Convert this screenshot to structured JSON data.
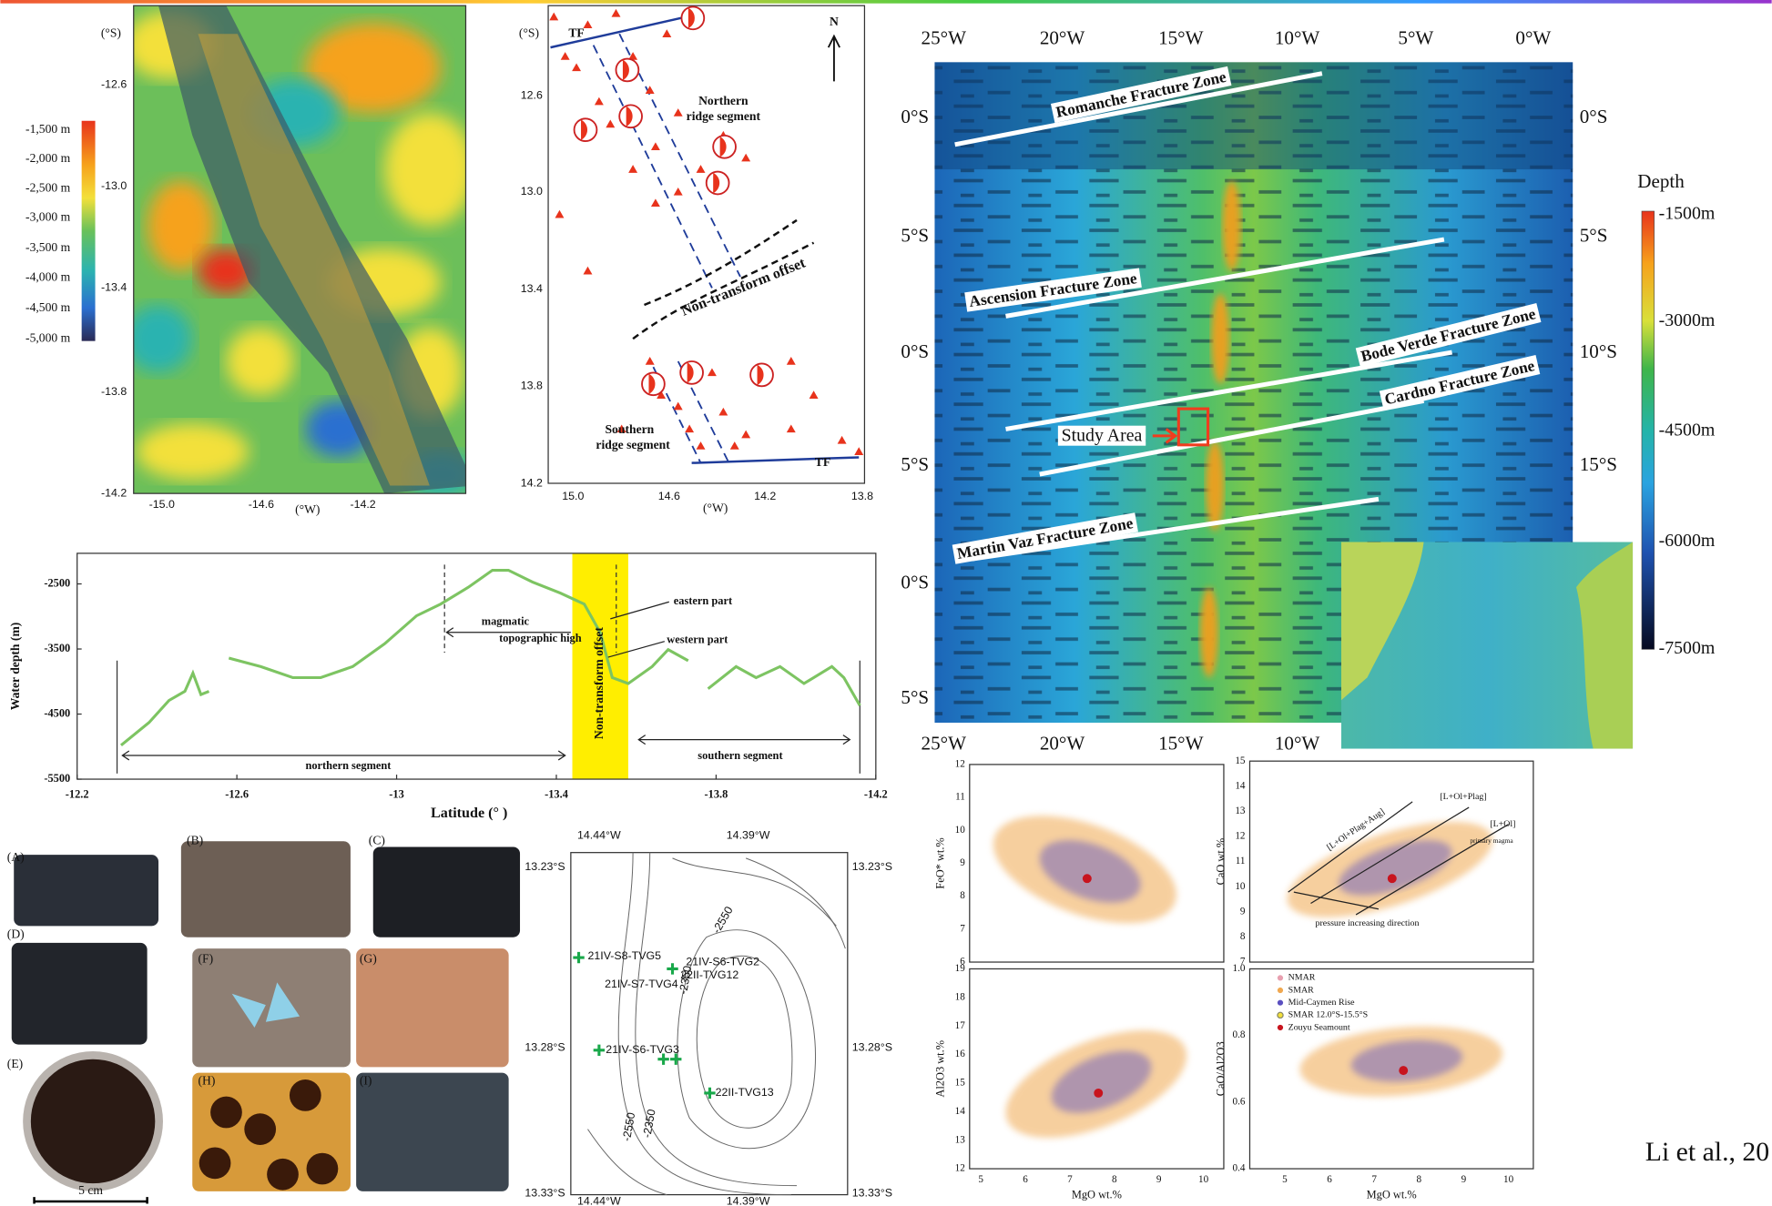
{
  "chart_data": {
    "type": "line",
    "x_label": "Latitude (° )",
    "y_label": "Water depth (m)",
    "x": [
      -12.31,
      -12.38,
      -12.43,
      -12.47,
      -12.49,
      -12.51,
      -12.53,
      -12.56,
      -12.58,
      -12.66,
      -12.74,
      -12.81,
      -12.89,
      -12.97,
      -13.05,
      -13.11,
      -13.18,
      -13.24,
      -13.28,
      -13.34,
      -13.41,
      -13.47,
      -13.51,
      -13.54,
      -13.58,
      -13.64,
      -13.68,
      -13.73,
      -13.76,
      -13.78,
      -13.85,
      -13.9,
      -13.96,
      -14.02,
      -14.09,
      -14.12,
      -14.16
    ],
    "values": [
      -4980,
      -4630,
      -4290,
      -4150,
      -3870,
      -4200,
      -4150,
      null,
      -3640,
      -3770,
      -3940,
      -3940,
      -3770,
      -3420,
      -2990,
      -2810,
      -2550,
      -2290,
      -2290,
      -2470,
      -2640,
      -2810,
      -3250,
      -3940,
      -4030,
      -3770,
      -3510,
      -3680,
      null,
      -4110,
      -3770,
      -3940,
      -3770,
      -4030,
      -3770,
      -3940,
      -4370
    ],
    "color": "#7dc462",
    "xlim": [
      -12.2,
      -14.2
    ],
    "ylim": [
      -5500,
      -2030
    ],
    "xticks": [
      -12.2,
      -12.6,
      -13,
      -13.4,
      -13.8,
      -14.2
    ],
    "yticks": [
      -2500,
      -3500,
      -4500,
      -5500
    ],
    "band": [
      -13.44,
      -13.58
    ],
    "band_color": "#ffee00",
    "vlines": [
      -12.3,
      -13.12,
      -13.55,
      -14.16
    ],
    "annotations": [
      "magmatic",
      "topographic high",
      "eastern part",
      "western part",
      "Non-transform offset",
      "northern  segment",
      "southern  segment"
    ]
  },
  "map1": {
    "lat_unit": "(°S)",
    "lat_ticks": [
      "-12.6",
      "-13.0",
      "-13.4",
      "-13.8",
      "-14.2"
    ],
    "lon_ticks": [
      "-15.0",
      "-14.6",
      "-14.2"
    ],
    "lon_unit": "(°W)",
    "colorbar": [
      "-1,500 m",
      "-2,000 m",
      "-2,500 m",
      "-3,000 m",
      "-3,500 m",
      "-4,000 m",
      "-4,500 m",
      "-5,000 m"
    ]
  },
  "seismic": {
    "lat_unit": "(°S)",
    "lat_ticks": [
      "12.6",
      "13.0",
      "13.4",
      "13.8",
      "14.2"
    ],
    "lon_ticks": [
      "15.0",
      "14.6",
      "14.2",
      "13.8"
    ],
    "lon_unit": "(°W)",
    "labels": [
      "TF",
      "TF",
      "N",
      "Northern",
      "ridge segment",
      "Non-transform offset",
      "Southern",
      "ridge segment"
    ]
  },
  "regional_map": {
    "top_lon": [
      "25°W",
      "20°W",
      "15°W",
      "10°W",
      "5°W",
      "0°W"
    ],
    "bottom_lon": [
      "25°W",
      "20°W",
      "15°W",
      "10°W"
    ],
    "left_lat": [
      "0°S",
      "5°S",
      "0°S",
      "5°S",
      "0°S",
      "5°S"
    ],
    "right_lat": [
      "0°S",
      "5°S",
      "10°S",
      "15°S"
    ],
    "zones": [
      "Romanche Fracture Zone",
      "Ascension Fracture Zone",
      "Bode Verde Fracture Zone",
      "Cardno Fracture Zone",
      "Martin Vaz Fracture Zone"
    ],
    "study_area": "Study Area",
    "depth_title": "Depth",
    "depth_labels": [
      "-1500m",
      "-3000m",
      "-4500m",
      "-6000m",
      "-7500m"
    ]
  },
  "samples": {
    "panel_labels": [
      "(A)",
      "(B)",
      "(C)",
      "(D)",
      "(E)",
      "(F)",
      "(G)",
      "(H)",
      "(I)"
    ],
    "scale": "5 cm"
  },
  "contour_map": {
    "top_lon": [
      "14.44°W",
      "14.39°W"
    ],
    "bottom_lon": [
      "14.44°W",
      "14.39°W"
    ],
    "left_lat": [
      "13.23°S",
      "13.28°S",
      "13.33°S"
    ],
    "right_lat": [
      "13.23°S",
      "13.28°S",
      "13.33°S"
    ],
    "contour_labels": [
      "-2550",
      "-2350",
      "-2550",
      "-2350"
    ],
    "stations": [
      "21IV-S8-TVG5",
      "21IV-S6-TVG2",
      "22II-TVG12",
      "21IV-S7-TVG4",
      "21IV-S6-TVG3",
      "22II-TVG13"
    ]
  },
  "geochem": {
    "x_label": "MgO wt.%",
    "x_ticks": [
      "5",
      "6",
      "7",
      "8",
      "9",
      "10"
    ],
    "panels": [
      {
        "y_label": "FeO* wt.%",
        "y_ticks": [
          "12",
          "11",
          "10",
          "9",
          "8",
          "7",
          "6"
        ]
      },
      {
        "y_label": "CaO wt.%",
        "y_ticks": [
          "15",
          "14",
          "13",
          "12",
          "11",
          "10",
          "9",
          "8",
          "7"
        ],
        "annotations": [
          "[L+Ol+Plag+Aug]",
          "[L+Ol+Plag]",
          "[L+Ol]",
          "primary magma",
          "pressure increasing direction"
        ]
      },
      {
        "y_label": "Al2O3 wt.%",
        "y_ticks": [
          "19",
          "18",
          "17",
          "16",
          "15",
          "14",
          "13",
          "12"
        ]
      },
      {
        "y_label": "CaO/Al2O3",
        "y_ticks": [
          "1.0",
          "0.8",
          "0.6",
          "0.4"
        ],
        "legend": [
          "NMAR",
          "SMAR",
          "Mid-Caymen Rise",
          "SMAR 12.0°S-15.5°S",
          "Zouyu Seamount"
        ]
      }
    ]
  },
  "citation": "Li et al., 20"
}
